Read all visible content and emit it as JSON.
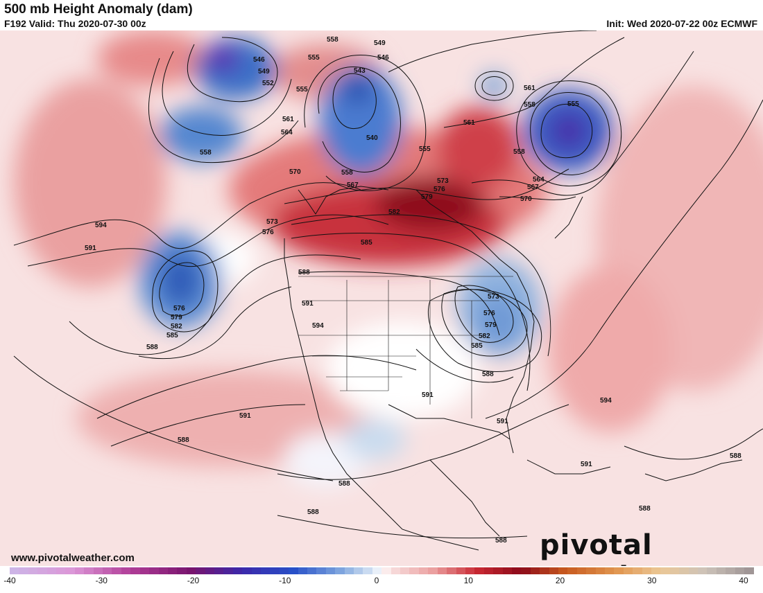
{
  "header": {
    "title": "500 mb Height Anomaly (dam)",
    "valid": "F192 Valid: Thu 2020-07-30 00z",
    "init": "Init: Wed 2020-07-22 00z ECMWF"
  },
  "branding": {
    "url": "www.pivotalweather.com",
    "logo": "pivotal weather"
  },
  "colorbar": {
    "ticks": [
      "-40",
      "-30",
      "-20",
      "-10",
      "0",
      "10",
      "20",
      "30",
      "40"
    ],
    "min": -40,
    "max": 40
  },
  "colors": {
    "strong_negative": "#3c2fb0",
    "negative": "#4f7fd0",
    "weak_negative": "#c6d8ef",
    "neutral": "#ffffff",
    "weak_positive": "#f7d4d4",
    "positive": "#e07a7a",
    "strong_positive": "#8e0f1a"
  },
  "contour_labels": [
    "546",
    "549",
    "552",
    "555",
    "558",
    "561",
    "564",
    "567",
    "570",
    "573",
    "576",
    "579",
    "582",
    "585",
    "588",
    "591",
    "594",
    "543",
    "540"
  ]
}
